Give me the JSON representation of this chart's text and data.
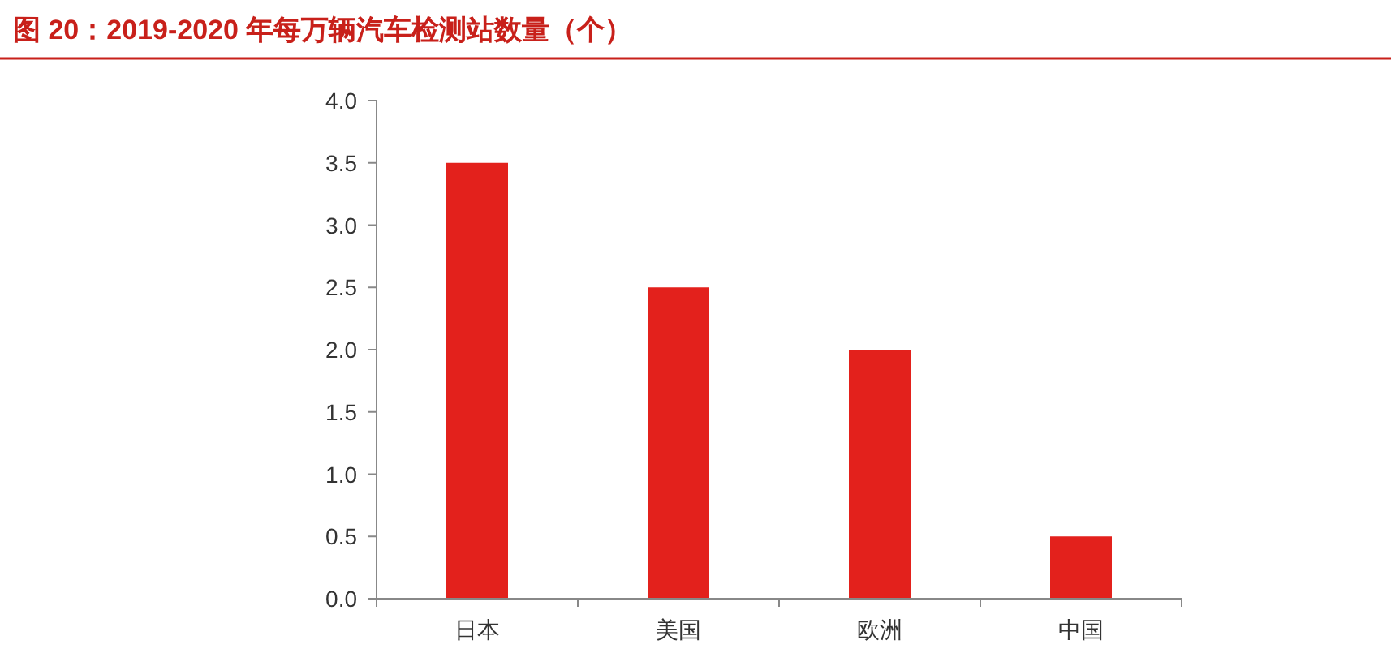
{
  "chart_data": {
    "type": "bar",
    "title": "图 20：2019-2020 年每万辆汽车检测站数量（个）",
    "categories": [
      "日本",
      "美国",
      "欧洲",
      "中国"
    ],
    "values": [
      3.5,
      2.5,
      2.0,
      0.5
    ],
    "color": "#e3211c",
    "ylim": [
      0,
      4
    ],
    "yticks": [
      {
        "value": 0,
        "label": "0.0"
      },
      {
        "value": 0.5,
        "label": "0.5"
      },
      {
        "value": 1,
        "label": "1.0"
      },
      {
        "value": 1.5,
        "label": "1.5"
      },
      {
        "value": 2,
        "label": "2.0"
      },
      {
        "value": 2.5,
        "label": "2.5"
      },
      {
        "value": 3,
        "label": "3.0"
      },
      {
        "value": 3.5,
        "label": "3.5"
      },
      {
        "value": 4,
        "label": "4.0"
      }
    ],
    "grid": false
  }
}
